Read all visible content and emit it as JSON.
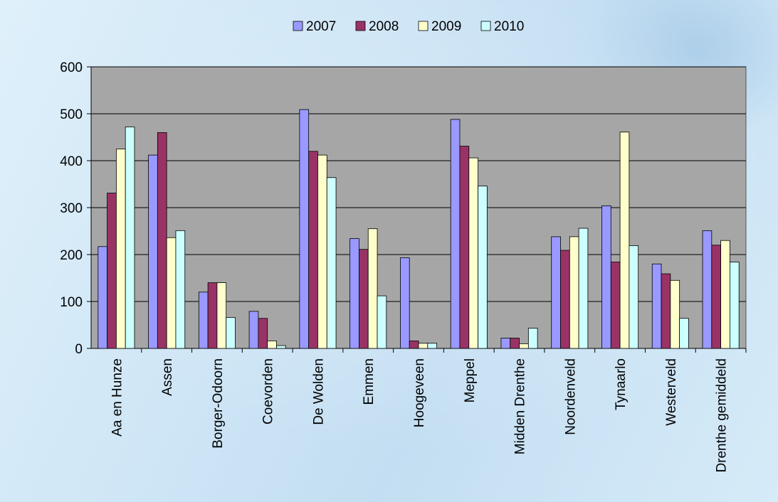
{
  "chart_data": {
    "type": "bar",
    "categories": [
      "Aa en Hunze",
      "Assen",
      "Borger-Odoorn",
      "Coevorden",
      "De Wolden",
      "Emmen",
      "Hoogeveen",
      "Meppel",
      "Midden Drenthe",
      "Noordenveld",
      "Tynaarlo",
      "Westerveld",
      "Drenthe gemiddeld"
    ],
    "series": [
      {
        "name": "2007",
        "color": "#9999ff",
        "values": [
          217,
          412,
          120,
          79,
          509,
          234,
          193,
          488,
          22,
          238,
          304,
          180,
          251
        ]
      },
      {
        "name": "2008",
        "color": "#993366",
        "values": [
          331,
          460,
          140,
          64,
          420,
          211,
          16,
          431,
          22,
          209,
          184,
          159,
          220
        ]
      },
      {
        "name": "2009",
        "color": "#ffffcc",
        "values": [
          425,
          236,
          140,
          16,
          412,
          255,
          11,
          406,
          10,
          238,
          461,
          145,
          230
        ]
      },
      {
        "name": "2010",
        "color": "#ccffff",
        "values": [
          472,
          251,
          66,
          6,
          364,
          112,
          11,
          346,
          43,
          256,
          219,
          64,
          184
        ]
      }
    ],
    "title": "",
    "xlabel": "",
    "ylabel": "",
    "ylim": [
      0,
      600
    ],
    "yticks": [
      0,
      100,
      200,
      300,
      400,
      500,
      600
    ],
    "grid": true,
    "legend": "top-center",
    "plot_background": "#a6a6a6"
  }
}
